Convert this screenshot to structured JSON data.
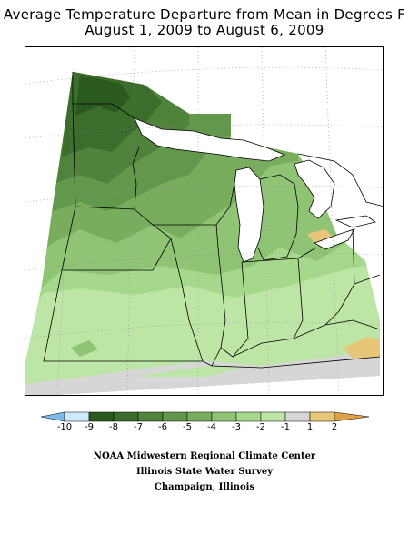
{
  "title": {
    "line1": "Average Temperature Departure from Mean in Degrees F",
    "line2": "August 1, 2009 to August 6, 2009"
  },
  "legend": {
    "labels": [
      "-10",
      "-9",
      "-8",
      "-7",
      "-6",
      "-5",
      "-4",
      "-3",
      "-2",
      "-1",
      "1",
      "2"
    ],
    "colors": {
      "below_-10": "#7eb9ea",
      "-10_to_-9": "#cfe9fb",
      "-9_to_-8": "#2a5a1e",
      "-8_to_-7": "#3b6d2c",
      "-7_to_-6": "#4f823b",
      "-6_to_-5": "#62984b",
      "-5_to_-4": "#79ad5e",
      "-4_to_-3": "#8ec474",
      "-3_to_-2": "#a6d88c",
      "-2_to_-1": "#bde6a6",
      "-1_to_1": "#d6d6d6",
      "1_to_2": "#e8c679",
      "above_2": "#e0a046"
    }
  },
  "credits": {
    "line1": "NOAA Midwestern Regional Climate Center",
    "line2": "Illinois State Water Survey",
    "line3": "Champaign, Illinois"
  }
}
